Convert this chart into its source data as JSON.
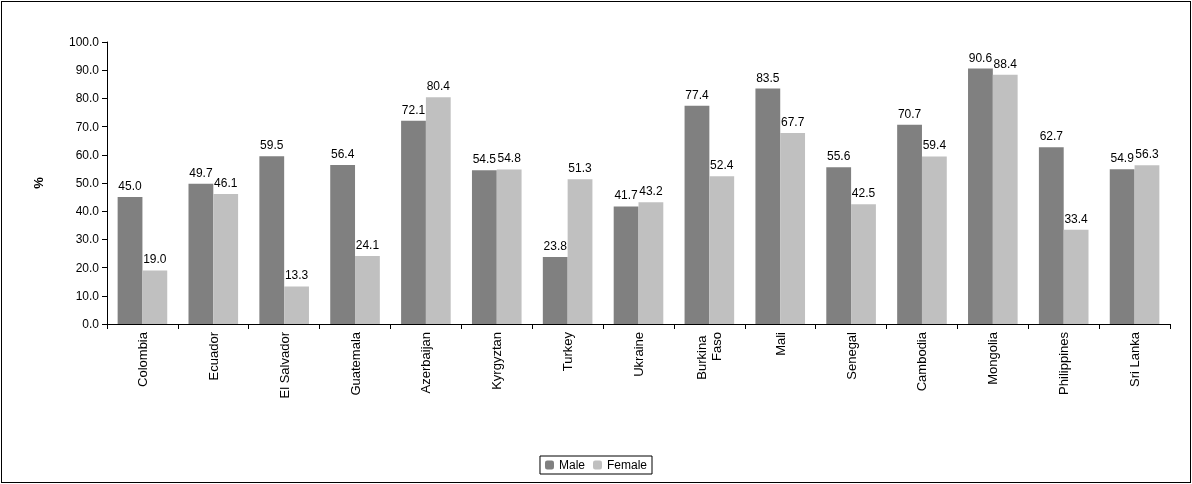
{
  "chart_data": {
    "type": "bar",
    "ylabel": "%",
    "categories": [
      "Colombia",
      "Ecuador",
      "El Salvador",
      "Guatemala",
      "Azerbaijan",
      "Kyrgyztan",
      "Turkey",
      "Ukraine",
      "Burkina Faso",
      "Mali",
      "Senegal",
      "Cambodia",
      "Mongolia",
      "Philippines",
      "Sri Lanka"
    ],
    "series": [
      {
        "name": "Male",
        "color": "#808080",
        "values": [
          45.0,
          49.7,
          59.5,
          56.4,
          72.1,
          54.5,
          23.8,
          41.7,
          77.4,
          83.5,
          55.6,
          70.7,
          90.6,
          62.7,
          54.9
        ],
        "value_labels": [
          "45.0",
          "49.7",
          "59.5",
          "56.4",
          "72.1",
          "54.5",
          "23.8",
          "41.7",
          "77.4",
          "83.5",
          "55.6",
          "70.7",
          "90.6",
          "62.7",
          "54.9"
        ]
      },
      {
        "name": "Female",
        "color": "#c0c0c0",
        "values": [
          19.0,
          46.1,
          13.3,
          24.1,
          80.4,
          54.8,
          51.3,
          43.2,
          52.4,
          67.7,
          42.5,
          59.4,
          88.4,
          33.4,
          56.3
        ],
        "value_labels": [
          "19.0",
          "46.1",
          "13.3",
          "24.1",
          "80.4",
          "54.8",
          "51.3",
          "43.2",
          "52.4",
          "67.7",
          "42.5",
          "59.4",
          "88.4",
          "33.4",
          "56.3"
        ]
      }
    ],
    "ylim": [
      0,
      100
    ],
    "yticks": [
      {
        "value": 0,
        "label": "0.0"
      },
      {
        "value": 10,
        "label": "10.0"
      },
      {
        "value": 20,
        "label": "20.0"
      },
      {
        "value": 30,
        "label": "30.0"
      },
      {
        "value": 40,
        "label": "40.0"
      },
      {
        "value": 50,
        "label": "50.0"
      },
      {
        "value": 60,
        "label": "60.0"
      },
      {
        "value": 70,
        "label": "70.0"
      },
      {
        "value": 80,
        "label": "80.0"
      },
      {
        "value": 90,
        "label": "90.0"
      },
      {
        "value": 100,
        "label": "100.0"
      }
    ],
    "grid": false,
    "legend": "bottom"
  }
}
